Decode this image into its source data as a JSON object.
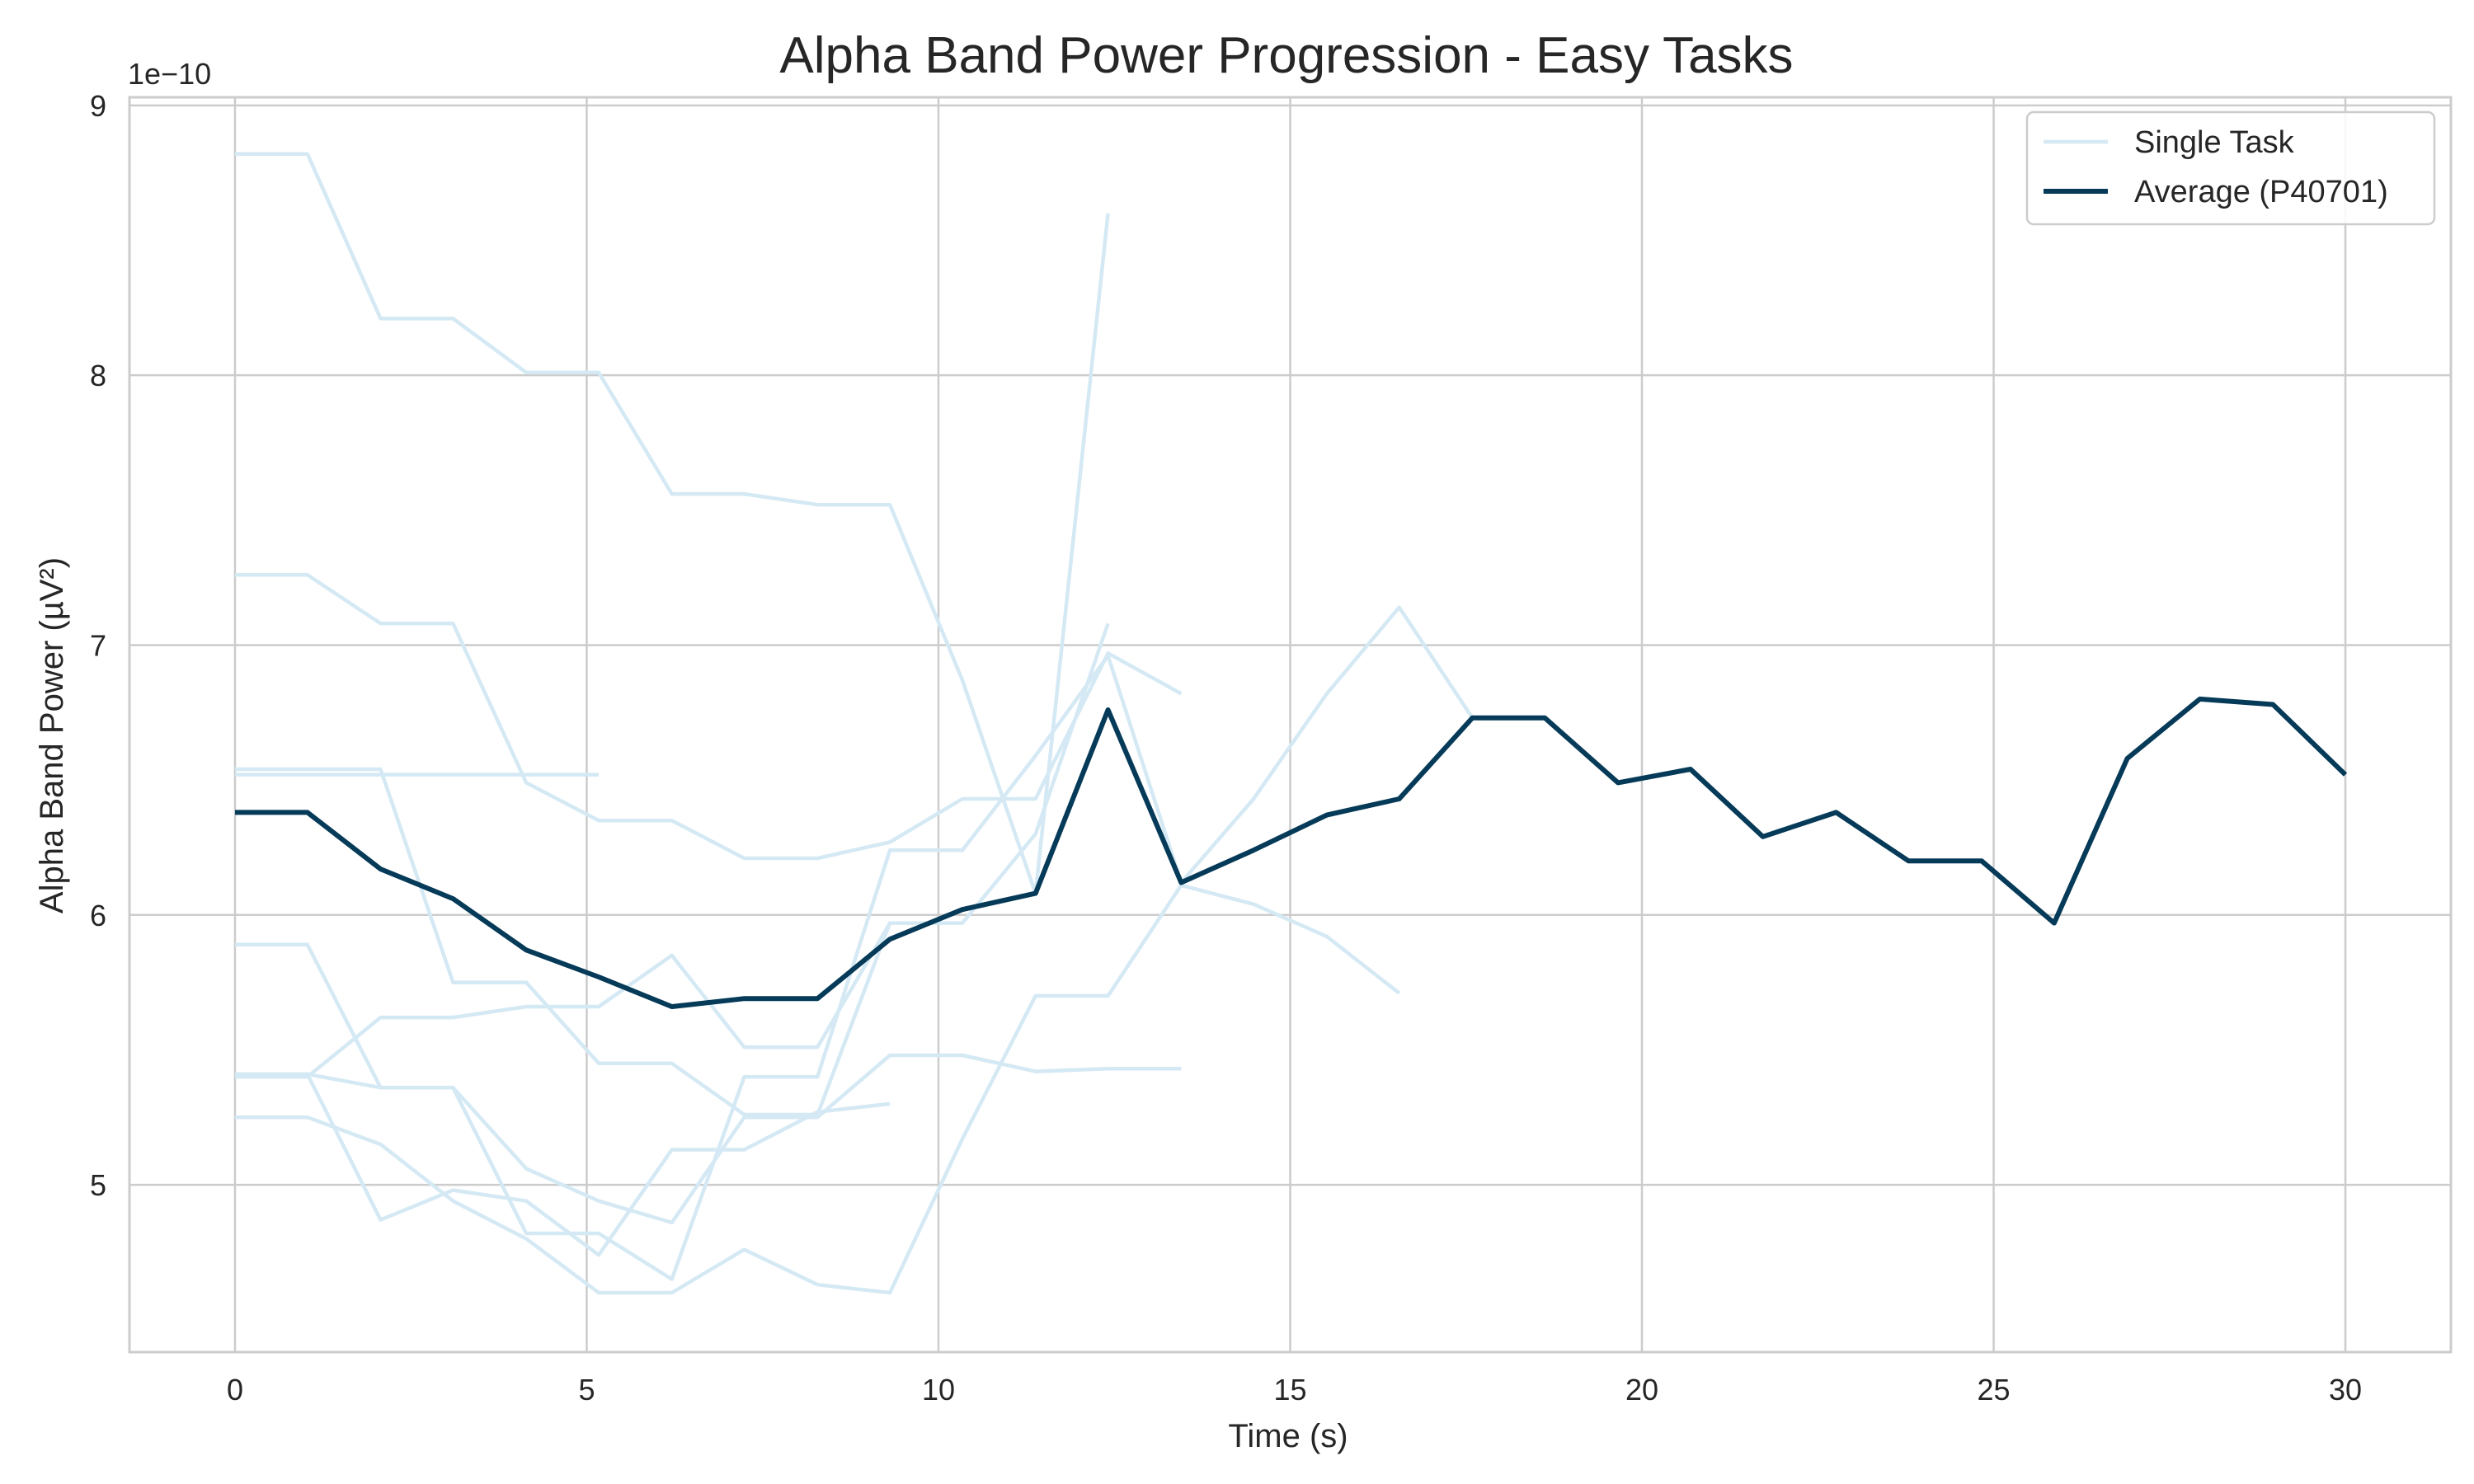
{
  "chart_data": {
    "type": "line",
    "title": "Alpha Band Power Progression - Easy Tasks",
    "xlabel": "Time (s)",
    "ylabel": "Alpha Band Power (µV²)",
    "y_offset_text": "1e−10",
    "xlim": [
      -1.5,
      31.5
    ],
    "ylim": [
      4.38,
      9.03
    ],
    "y_scale_multiplier": 1e-10,
    "x_ticks": [
      0,
      5,
      10,
      15,
      20,
      25,
      30
    ],
    "y_ticks": [
      5,
      6,
      7,
      8,
      9
    ],
    "grid": true,
    "legend_position": "top-right",
    "legend": [
      "Single Task",
      "Average (P40701)"
    ],
    "colors": {
      "single": "#d4e9f4",
      "average": "#053a58",
      "grid": "#cccccc",
      "spine": "#cccccc"
    },
    "series": [
      {
        "group": "single",
        "x": [
          0,
          1.03,
          2.07,
          3.1,
          4.14,
          5.17,
          6.21,
          7.24,
          8.28,
          9.31,
          10.34,
          11.38,
          12.41
        ],
        "values": [
          8.82,
          8.82,
          8.21,
          8.21,
          8.01,
          8.01,
          7.56,
          7.56,
          7.52,
          7.52,
          6.87,
          6.08,
          8.6
        ]
      },
      {
        "group": "single",
        "x": [
          0,
          1.03,
          2.07,
          3.1,
          4.14,
          5.17,
          6.21,
          7.24,
          8.28,
          9.31,
          10.34,
          11.38,
          12.41,
          13.45
        ],
        "values": [
          7.26,
          7.26,
          7.08,
          7.08,
          6.49,
          6.35,
          6.35,
          6.21,
          6.21,
          6.27,
          6.43,
          6.43,
          6.97,
          6.82
        ]
      },
      {
        "group": "single",
        "x": [
          0,
          1.03,
          2.07,
          3.1,
          4.14,
          5.17
        ],
        "values": [
          6.52,
          6.52,
          6.52,
          6.52,
          6.52,
          6.52
        ]
      },
      {
        "group": "single",
        "x": [
          0,
          1.03,
          2.07,
          3.1,
          4.14,
          5.17,
          6.21,
          7.24,
          8.28,
          9.31,
          10.34,
          11.38,
          12.41
        ],
        "values": [
          6.54,
          6.54,
          6.54,
          5.75,
          5.75,
          5.45,
          5.45,
          5.26,
          5.26,
          5.97,
          5.97,
          6.3,
          7.08
        ]
      },
      {
        "group": "single",
        "x": [
          0,
          1.03,
          2.07,
          3.1,
          4.14,
          5.17,
          6.21,
          7.24,
          8.28,
          9.31,
          10.34,
          11.38,
          12.41,
          13.45,
          14.48,
          15.52,
          16.55,
          17.59
        ],
        "values": [
          5.89,
          5.89,
          5.36,
          5.36,
          4.82,
          4.82,
          4.65,
          5.4,
          5.4,
          6.24,
          6.24,
          6.59,
          6.96,
          6.12,
          6.43,
          6.82,
          7.14,
          6.73
        ]
      },
      {
        "group": "single",
        "x": [
          0,
          1.03,
          2.07,
          3.1,
          4.14,
          5.17,
          6.21,
          7.24,
          8.28,
          9.31
        ],
        "values": [
          5.4,
          5.4,
          5.62,
          5.62,
          5.66,
          5.66,
          5.85,
          5.51,
          5.51,
          5.97
        ]
      },
      {
        "group": "single",
        "x": [
          0,
          1.03,
          2.07,
          3.1,
          4.14,
          5.17,
          6.21,
          7.24,
          8.28,
          9.31
        ],
        "values": [
          5.41,
          5.41,
          4.87,
          4.98,
          4.94,
          4.74,
          5.13,
          5.13,
          5.27,
          5.3
        ]
      },
      {
        "group": "single",
        "x": [
          0,
          1.03,
          2.07,
          3.1,
          4.14,
          5.17,
          6.21,
          7.24,
          8.28,
          9.31,
          10.34,
          11.38,
          12.41,
          13.45,
          14.48,
          15.52,
          16.55
        ],
        "values": [
          5.25,
          5.25,
          5.15,
          4.94,
          4.8,
          4.6,
          4.6,
          4.76,
          4.63,
          4.6,
          5.17,
          5.7,
          5.7,
          6.11,
          6.04,
          5.92,
          5.71
        ]
      },
      {
        "group": "single",
        "x": [
          0,
          1.03,
          2.07,
          3.1,
          4.14,
          5.17,
          6.21,
          7.24,
          8.28,
          9.31,
          10.34,
          11.38,
          12.41,
          13.45
        ],
        "values": [
          5.41,
          5.41,
          5.36,
          5.36,
          5.06,
          4.94,
          4.86,
          5.25,
          5.25,
          5.48,
          5.48,
          5.42,
          5.43,
          5.43
        ]
      },
      {
        "name": "Average (P40701)",
        "group": "average",
        "x": [
          0,
          1.03,
          2.07,
          3.1,
          4.14,
          5.17,
          6.21,
          7.24,
          8.28,
          9.31,
          10.34,
          11.38,
          12.41,
          13.45,
          14.48,
          15.52,
          16.55,
          17.59,
          18.62,
          19.66,
          20.69,
          21.72,
          22.76,
          23.79,
          24.83,
          25.86,
          26.9,
          27.93,
          28.97,
          30
        ],
        "values": [
          6.38,
          6.38,
          6.17,
          6.06,
          5.87,
          5.77,
          5.66,
          5.69,
          5.69,
          5.91,
          6.02,
          6.08,
          6.76,
          6.12,
          6.24,
          6.37,
          6.43,
          6.73,
          6.73,
          6.49,
          6.54,
          6.29,
          6.38,
          6.2,
          6.2,
          5.97,
          6.58,
          6.8,
          6.78,
          6.52
        ]
      }
    ]
  }
}
